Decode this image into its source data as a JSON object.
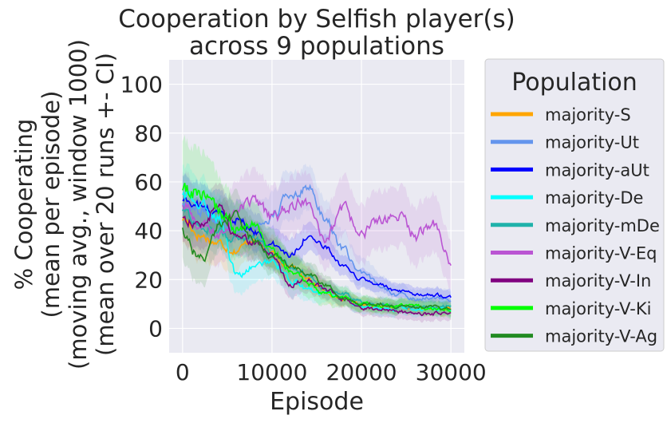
{
  "chart_data": {
    "type": "line",
    "title": [
      "Cooperation by Selfish player(s)",
      "across 9 populations"
    ],
    "xlabel": "Episode",
    "ylabel": [
      "% Cooperating",
      "(mean per episode)",
      "(moving avg., window 1000)",
      "(mean over 20 runs +- CI)"
    ],
    "xlim": [
      -1500,
      31500
    ],
    "ylim": [
      -10,
      110
    ],
    "xticks": [
      0,
      10000,
      20000,
      30000
    ],
    "xtick_labels": [
      "0",
      "10000",
      "20000",
      "30000"
    ],
    "yticks": [
      0,
      20,
      40,
      60,
      80,
      100
    ],
    "ytick_labels": [
      "0",
      "20",
      "40",
      "60",
      "80",
      "100"
    ],
    "grid": true,
    "background": "#eaeaf2",
    "legend": {
      "title": "Population",
      "placement": "outside-right"
    },
    "series": [
      {
        "name": "majority-S",
        "color": "#ffa500",
        "x": [
          0,
          2000,
          4000,
          6000,
          8000,
          10000,
          12000,
          14000,
          16000,
          18000,
          20000,
          22000,
          24000,
          26000,
          28000,
          30000
        ],
        "y": [
          45,
          38,
          35,
          32,
          37,
          30,
          26,
          20,
          15,
          12,
          10,
          9,
          9,
          8,
          8,
          8
        ],
        "ci": [
          10,
          10,
          9,
          8,
          7,
          7,
          6,
          5,
          4,
          3,
          3,
          3,
          3,
          3,
          3,
          3
        ]
      },
      {
        "name": "majority-Ut",
        "color": "#6495ed",
        "x": [
          0,
          2000,
          4000,
          6000,
          8000,
          10000,
          12000,
          14000,
          16000,
          18000,
          20000,
          22000,
          24000,
          26000,
          28000,
          30000
        ],
        "y": [
          52,
          48,
          45,
          40,
          42,
          45,
          55,
          58,
          45,
          32,
          22,
          18,
          14,
          12,
          13,
          11
        ],
        "ci": [
          12,
          11,
          10,
          10,
          10,
          10,
          10,
          9,
          8,
          7,
          6,
          5,
          4,
          4,
          4,
          4
        ]
      },
      {
        "name": "majority-aUt",
        "color": "#0000ff",
        "x": [
          0,
          2000,
          4000,
          6000,
          8000,
          10000,
          12000,
          14000,
          16000,
          18000,
          20000,
          22000,
          24000,
          26000,
          28000,
          30000
        ],
        "y": [
          53,
          50,
          47,
          45,
          40,
          34,
          30,
          38,
          33,
          25,
          20,
          18,
          15,
          14,
          14,
          13
        ],
        "ci": [
          10,
          9,
          9,
          8,
          8,
          7,
          7,
          6,
          5,
          4,
          4,
          3,
          3,
          3,
          3,
          3
        ]
      },
      {
        "name": "majority-De",
        "color": "#00ffff",
        "x": [
          0,
          2000,
          4000,
          6000,
          8000,
          10000,
          12000,
          14000,
          16000,
          18000,
          20000,
          22000,
          24000,
          26000,
          28000,
          30000
        ],
        "y": [
          55,
          50,
          46,
          22,
          25,
          28,
          20,
          16,
          14,
          12,
          9,
          8,
          8,
          8,
          8,
          8
        ],
        "ci": [
          12,
          11,
          10,
          8,
          7,
          7,
          6,
          5,
          4,
          3,
          3,
          3,
          3,
          3,
          3,
          3
        ]
      },
      {
        "name": "majority-mDe",
        "color": "#20b2aa",
        "x": [
          0,
          2000,
          4000,
          6000,
          8000,
          10000,
          12000,
          14000,
          16000,
          18000,
          20000,
          22000,
          24000,
          26000,
          28000,
          30000
        ],
        "y": [
          48,
          42,
          40,
          36,
          38,
          30,
          26,
          22,
          16,
          14,
          11,
          10,
          9,
          9,
          9,
          9
        ],
        "ci": [
          10,
          10,
          9,
          8,
          7,
          6,
          6,
          5,
          4,
          3,
          3,
          3,
          3,
          3,
          3,
          3
        ]
      },
      {
        "name": "majority-V-Eq",
        "color": "#ba55d3",
        "x": [
          0,
          2000,
          4000,
          6000,
          8000,
          10000,
          12000,
          14000,
          16000,
          18000,
          20000,
          22000,
          24000,
          26000,
          28000,
          30000
        ],
        "y": [
          50,
          42,
          38,
          48,
          52,
          45,
          50,
          52,
          38,
          48,
          40,
          43,
          46,
          38,
          44,
          27
        ],
        "ci": [
          14,
          13,
          12,
          12,
          12,
          12,
          12,
          12,
          12,
          12,
          12,
          12,
          12,
          12,
          12,
          10
        ]
      },
      {
        "name": "majority-V-In",
        "color": "#800080",
        "x": [
          0,
          2000,
          4000,
          6000,
          8000,
          10000,
          12000,
          14000,
          16000,
          18000,
          20000,
          22000,
          24000,
          26000,
          28000,
          30000
        ],
        "y": [
          45,
          42,
          50,
          38,
          35,
          30,
          18,
          20,
          16,
          12,
          8,
          8,
          7,
          6,
          6,
          6
        ],
        "ci": [
          10,
          10,
          9,
          8,
          7,
          6,
          5,
          5,
          4,
          3,
          3,
          3,
          3,
          3,
          3,
          3
        ]
      },
      {
        "name": "majority-V-Ki",
        "color": "#00ff00",
        "x": [
          0,
          2000,
          4000,
          6000,
          8000,
          10000,
          12000,
          14000,
          16000,
          18000,
          20000,
          22000,
          24000,
          26000,
          28000,
          30000
        ],
        "y": [
          55,
          56,
          48,
          40,
          43,
          32,
          24,
          18,
          14,
          12,
          10,
          9,
          9,
          9,
          8,
          8
        ],
        "ci": [
          20,
          18,
          14,
          11,
          9,
          8,
          7,
          6,
          5,
          4,
          3,
          3,
          3,
          3,
          3,
          3
        ]
      },
      {
        "name": "majority-V-Ag",
        "color": "#228b22",
        "x": [
          0,
          2000,
          4000,
          6000,
          8000,
          10000,
          12000,
          14000,
          16000,
          18000,
          20000,
          22000,
          24000,
          26000,
          28000,
          30000
        ],
        "y": [
          40,
          28,
          42,
          46,
          36,
          30,
          26,
          22,
          18,
          12,
          10,
          10,
          9,
          9,
          9,
          8
        ],
        "ci": [
          12,
          11,
          10,
          9,
          8,
          7,
          6,
          5,
          4,
          3,
          3,
          3,
          3,
          3,
          3,
          3
        ]
      }
    ]
  }
}
